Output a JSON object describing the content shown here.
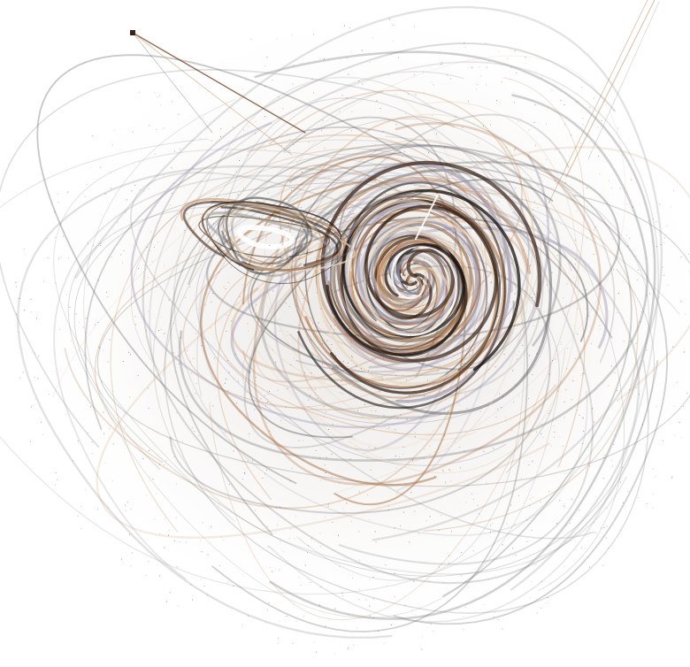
{
  "artwork": {
    "kind": "strange-attractor-render",
    "background": "#ffffff",
    "palette": {
      "ink": "#1a1410",
      "grey": "#5a5a5a",
      "light_grey": "#9a9a9a",
      "tan": "#c8956a",
      "copper": "#a86a3c",
      "cream": "#e8d9c2",
      "lavender": "#a8a0b8",
      "dark_brown": "#3a2418"
    },
    "icons": [
      "anchor-dot"
    ]
  }
}
